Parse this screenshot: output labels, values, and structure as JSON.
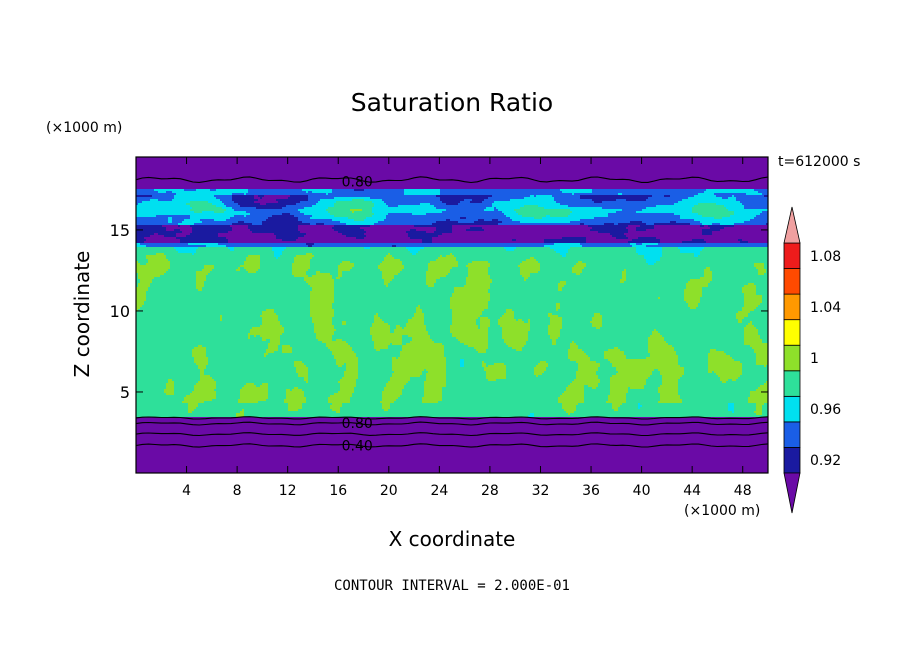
{
  "chart_data": {
    "type": "heatmap",
    "title": "Saturation Ratio",
    "xlabel": "X coordinate",
    "ylabel": "Z coordinate",
    "x_unit": "(×1000 m)",
    "y_unit": "(×1000 m)",
    "time_label": "t=612000 s",
    "footer": "CONTOUR INTERVAL = 2.000E-01",
    "xlim": [
      0,
      50
    ],
    "ylim": [
      0,
      19.5
    ],
    "x_ticks": [
      4,
      8,
      12,
      16,
      20,
      24,
      28,
      32,
      36,
      40,
      44,
      48
    ],
    "y_ticks": [
      5,
      10,
      15
    ],
    "contour_labels": [
      {
        "text": "0.80",
        "x": 17.5,
        "z": 18.0
      },
      {
        "text": "0.80",
        "x": 17.5,
        "z": 3.1
      },
      {
        "text": "0.40",
        "x": 17.5,
        "z": 1.7
      }
    ],
    "colorbar": {
      "levels": [
        0.92,
        0.94,
        0.96,
        0.98,
        1.0,
        1.02,
        1.04,
        1.06,
        1.08,
        1.1
      ],
      "tick_labels": [
        "0.92",
        "0.96",
        "1",
        "1.04",
        "1.08"
      ],
      "tick_values": [
        0.92,
        0.96,
        1.0,
        1.04,
        1.08
      ],
      "colors": [
        "#6a0aa6",
        "#1a1aa0",
        "#1a5ee6",
        "#00e0f0",
        "#2ee09a",
        "#8ee02a",
        "#ffff00",
        "#ff9900",
        "#ff4a00",
        "#ee1c1c",
        "#f0a0a0"
      ]
    },
    "layers": [
      {
        "z_range": [
          0,
          3.4
        ],
        "value": 0.5
      },
      {
        "z_range": [
          3.4,
          14.0
        ],
        "value": 0.99
      },
      {
        "z_range": [
          14.0,
          17.5
        ],
        "value": 0.93
      },
      {
        "z_range": [
          17.5,
          19.5
        ],
        "value": 0.6
      }
    ]
  }
}
